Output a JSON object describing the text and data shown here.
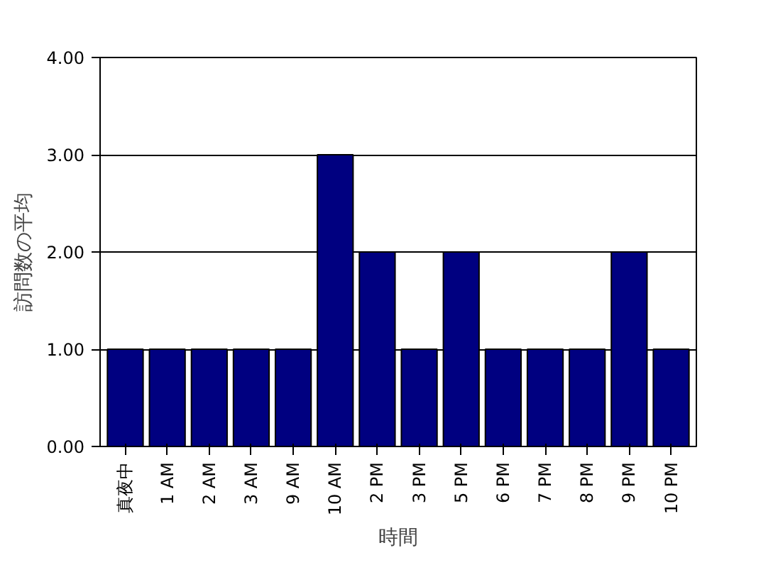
{
  "chart_data": {
    "type": "bar",
    "xlabel": "時間",
    "ylabel": "訪問数の平均",
    "categories": [
      "真夜中",
      "1 AM",
      "2 AM",
      "3 AM",
      "9 AM",
      "10 AM",
      "2 PM",
      "3 PM",
      "5 PM",
      "6 PM",
      "7 PM",
      "8 PM",
      "9 PM",
      "10 PM"
    ],
    "values": [
      1,
      1,
      1,
      1,
      1,
      3,
      2,
      1,
      2,
      1,
      1,
      1,
      2,
      1
    ],
    "color": "#000080",
    "ylim": [
      0,
      4
    ],
    "yticks": [
      {
        "value": 0,
        "label": "0.00"
      },
      {
        "value": 1,
        "label": "1.00"
      },
      {
        "value": 2,
        "label": "2.00"
      },
      {
        "value": 3,
        "label": "3.00"
      },
      {
        "value": 4,
        "label": "4.00"
      }
    ],
    "grid": "y"
  }
}
